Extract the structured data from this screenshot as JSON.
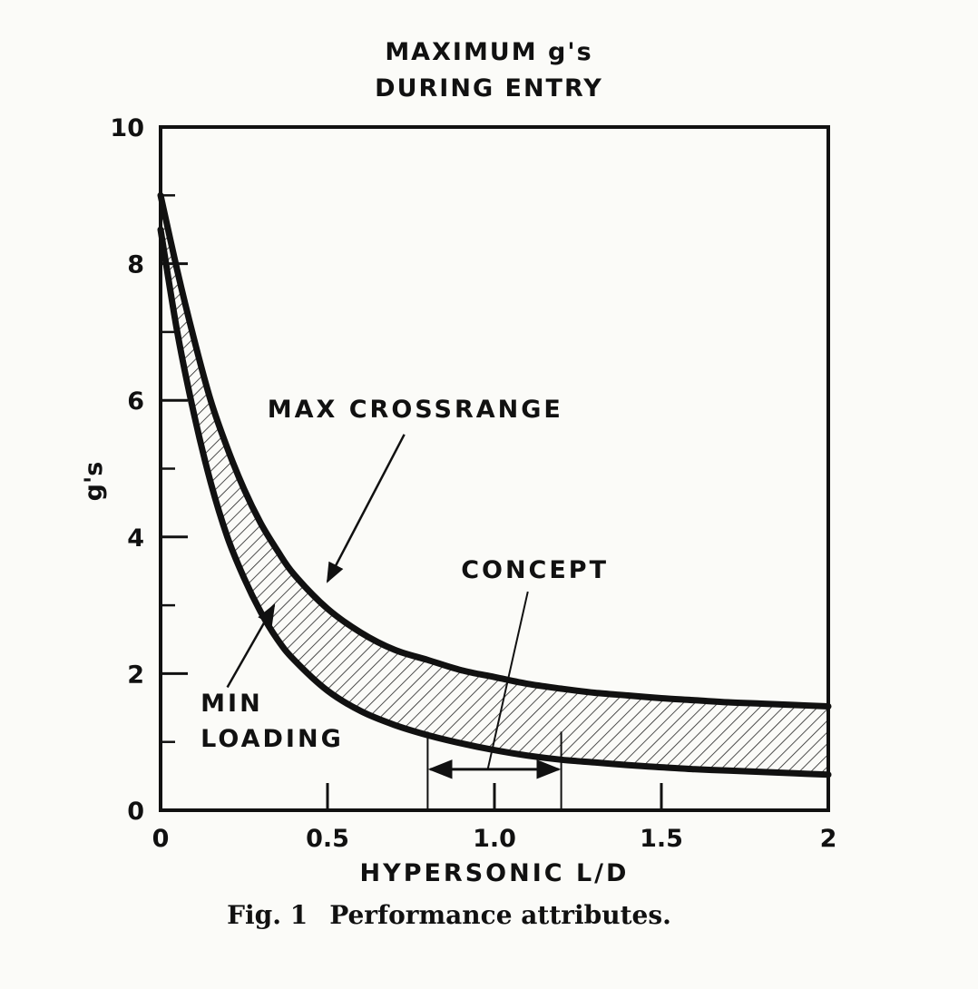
{
  "chart_data": {
    "type": "area",
    "title": [
      "MAXIMUM g's",
      "DURING ENTRY"
    ],
    "xlabel": "HYPERSONIC L/D",
    "ylabel": "g's",
    "xlim": [
      0,
      2
    ],
    "ylim": [
      0,
      10
    ],
    "x_ticks": [
      0,
      0.5,
      1.0,
      1.5,
      2
    ],
    "x_tick_labels": [
      "0",
      "0.5",
      "1.0",
      "1.5",
      "2"
    ],
    "x_minor_ticks": [
      0.5,
      1.0,
      1.5
    ],
    "y_ticks": [
      0,
      2,
      4,
      6,
      8,
      10
    ],
    "y_tick_labels": [
      "0",
      "2",
      "4",
      "6",
      "8",
      "10"
    ],
    "y_minor_ticks": [
      1,
      3,
      5,
      7,
      9
    ],
    "grid": false,
    "x": [
      0,
      0.05,
      0.1,
      0.15,
      0.2,
      0.25,
      0.3,
      0.35,
      0.4,
      0.5,
      0.6,
      0.7,
      0.8,
      0.9,
      1.0,
      1.1,
      1.2,
      1.3,
      1.4,
      1.5,
      1.6,
      1.7,
      1.8,
      1.9,
      2.0
    ],
    "series": [
      {
        "name": "MAX CROSSRANGE",
        "values": [
          9.0,
          7.9,
          6.9,
          6.0,
          5.3,
          4.7,
          4.2,
          3.8,
          3.45,
          2.95,
          2.6,
          2.35,
          2.2,
          2.05,
          1.95,
          1.85,
          1.78,
          1.72,
          1.68,
          1.64,
          1.61,
          1.58,
          1.56,
          1.54,
          1.52
        ]
      },
      {
        "name": "MIN LOADING",
        "values": [
          8.5,
          7.0,
          5.8,
          4.8,
          4.0,
          3.4,
          2.9,
          2.5,
          2.2,
          1.75,
          1.45,
          1.25,
          1.1,
          0.98,
          0.88,
          0.8,
          0.74,
          0.7,
          0.66,
          0.63,
          0.6,
          0.58,
          0.56,
          0.54,
          0.52
        ]
      }
    ],
    "fill": {
      "between": [
        "MAX CROSSRANGE",
        "MIN LOADING"
      ],
      "pattern": "diagonal-hatch"
    },
    "annotations": [
      {
        "id": "max-crossrange",
        "lines": [
          "MAX CROSSRANGE"
        ],
        "text_at": [
          0.32,
          5.75
        ],
        "arrow_to": [
          0.5,
          3.35
        ]
      },
      {
        "id": "min-loading",
        "lines": [
          "MIN",
          "LOADING"
        ],
        "text_at": [
          0.12,
          1.45
        ],
        "arrow_to": [
          0.34,
          3.0
        ]
      },
      {
        "id": "concept",
        "lines": [
          "CONCEPT"
        ],
        "text_at": [
          0.9,
          3.4
        ],
        "range": [
          0.8,
          1.2
        ],
        "arrow_y": 0.6,
        "bar_top_y": 1.15,
        "leader_from": [
          1.05,
          2.2
        ],
        "leader_to": [
          0.98,
          0.6
        ]
      }
    ],
    "colors": {
      "ink": "#111111",
      "paper": "#fbfbf8",
      "hatch": "#222222"
    }
  },
  "caption": {
    "label": "Fig. 1",
    "text": "Performance attributes."
  }
}
